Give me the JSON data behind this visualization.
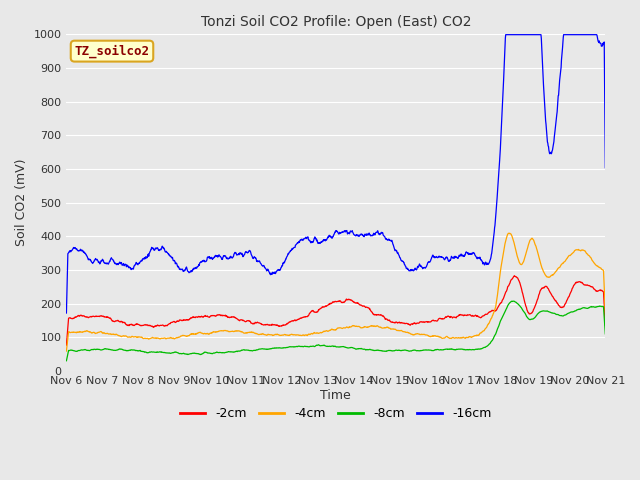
{
  "title": "Tonzi Soil CO2 Profile: Open (East) CO2",
  "ylabel": "Soil CO2 (mV)",
  "xlabel": "Time",
  "ylim": [
    0,
    1000
  ],
  "yticks": [
    0,
    100,
    200,
    300,
    400,
    500,
    600,
    700,
    800,
    900,
    1000
  ],
  "xtick_labels": [
    "Nov 6",
    "Nov 7",
    "Nov 8",
    "Nov 9",
    "Nov 10",
    "Nov 11",
    "Nov 12",
    "Nov 13",
    "Nov 14",
    "Nov 15",
    "Nov 16",
    "Nov 17",
    "Nov 18",
    "Nov 19",
    "Nov 20",
    "Nov 21"
  ],
  "watermark_text": "TZ_soilco2",
  "watermark_color": "#8B0000",
  "watermark_bg": "#FFFFCC",
  "watermark_border": "#DAA520",
  "bg_color": "#E8E8E8",
  "plot_bg": "#E8E8E8",
  "grid_color": "#FFFFFF",
  "colors": {
    "2cm": "#FF0000",
    "4cm": "#FFA500",
    "8cm": "#00BB00",
    "16cm": "#0000FF"
  },
  "legend_labels": [
    "-2cm",
    "-4cm",
    "-8cm",
    "-16cm"
  ],
  "legend_colors": [
    "#FF0000",
    "#FFA500",
    "#00BB00",
    "#0000FF"
  ]
}
